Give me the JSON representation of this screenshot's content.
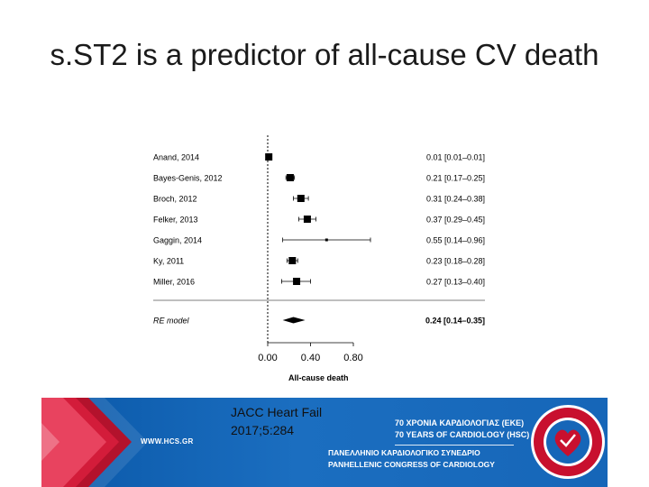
{
  "slide": {
    "title": "s.ST2 is a predictor of all-cause CV death"
  },
  "chart_data": {
    "type": "forest",
    "studies": [
      {
        "label": "Anand, 2014",
        "estimate": 0.01,
        "lower": 0.01,
        "upper": 0.01,
        "ci_text": "0.01 [0.01–0.01]"
      },
      {
        "label": "Bayes-Genis, 2012",
        "estimate": 0.21,
        "lower": 0.17,
        "upper": 0.25,
        "ci_text": "0.21 [0.17–0.25]"
      },
      {
        "label": "Broch, 2012",
        "estimate": 0.31,
        "lower": 0.24,
        "upper": 0.38,
        "ci_text": "0.31 [0.24–0.38]"
      },
      {
        "label": "Felker, 2013",
        "estimate": 0.37,
        "lower": 0.29,
        "upper": 0.45,
        "ci_text": "0.37 [0.29–0.45]"
      },
      {
        "label": "Gaggin, 2014",
        "estimate": 0.55,
        "lower": 0.14,
        "upper": 0.96,
        "ci_text": "0.55 [0.14–0.96]"
      },
      {
        "label": "Ky, 2011",
        "estimate": 0.23,
        "lower": 0.18,
        "upper": 0.28,
        "ci_text": "0.23 [0.18–0.28]"
      },
      {
        "label": "Miller, 2016",
        "estimate": 0.27,
        "lower": 0.13,
        "upper": 0.4,
        "ci_text": "0.27 [0.13–0.40]"
      }
    ],
    "summary": {
      "label": "RE model",
      "estimate": 0.24,
      "lower": 0.14,
      "upper": 0.35,
      "ci_text": "0.24 [0.14–0.35]"
    },
    "xticks": [
      "0.00",
      "0.40",
      "0.80"
    ],
    "xtick_values": [
      0.0,
      0.4,
      0.8
    ],
    "xlim": [
      0.0,
      0.8
    ],
    "xlabel": "All-cause death",
    "reference_line": 0.0
  },
  "citation": {
    "text": "JACC Heart Fail 2017;5:284"
  },
  "banner": {
    "url": "WWW.HCS.GR",
    "anniversary_el": "70 ΧΡΟΝΙΑ ΚΑΡΔΙΟΛΟΓΙΑΣ (ΕΚΕ)",
    "anniversary_en": "70 YEARS OF CARDIOLOGY (HSC)",
    "congress_el": "ΠΑΝΕΛΛΗΝΙΟ ΚΑΡΔΙΟΛΟΓΙΚΟ ΣΥΝΕΔΡΙΟ",
    "congress_en": "PANHELLENIC CONGRESS OF CARDIOLOGY",
    "colors": {
      "primary": "#1666b8",
      "accent": "#c8102e"
    }
  }
}
